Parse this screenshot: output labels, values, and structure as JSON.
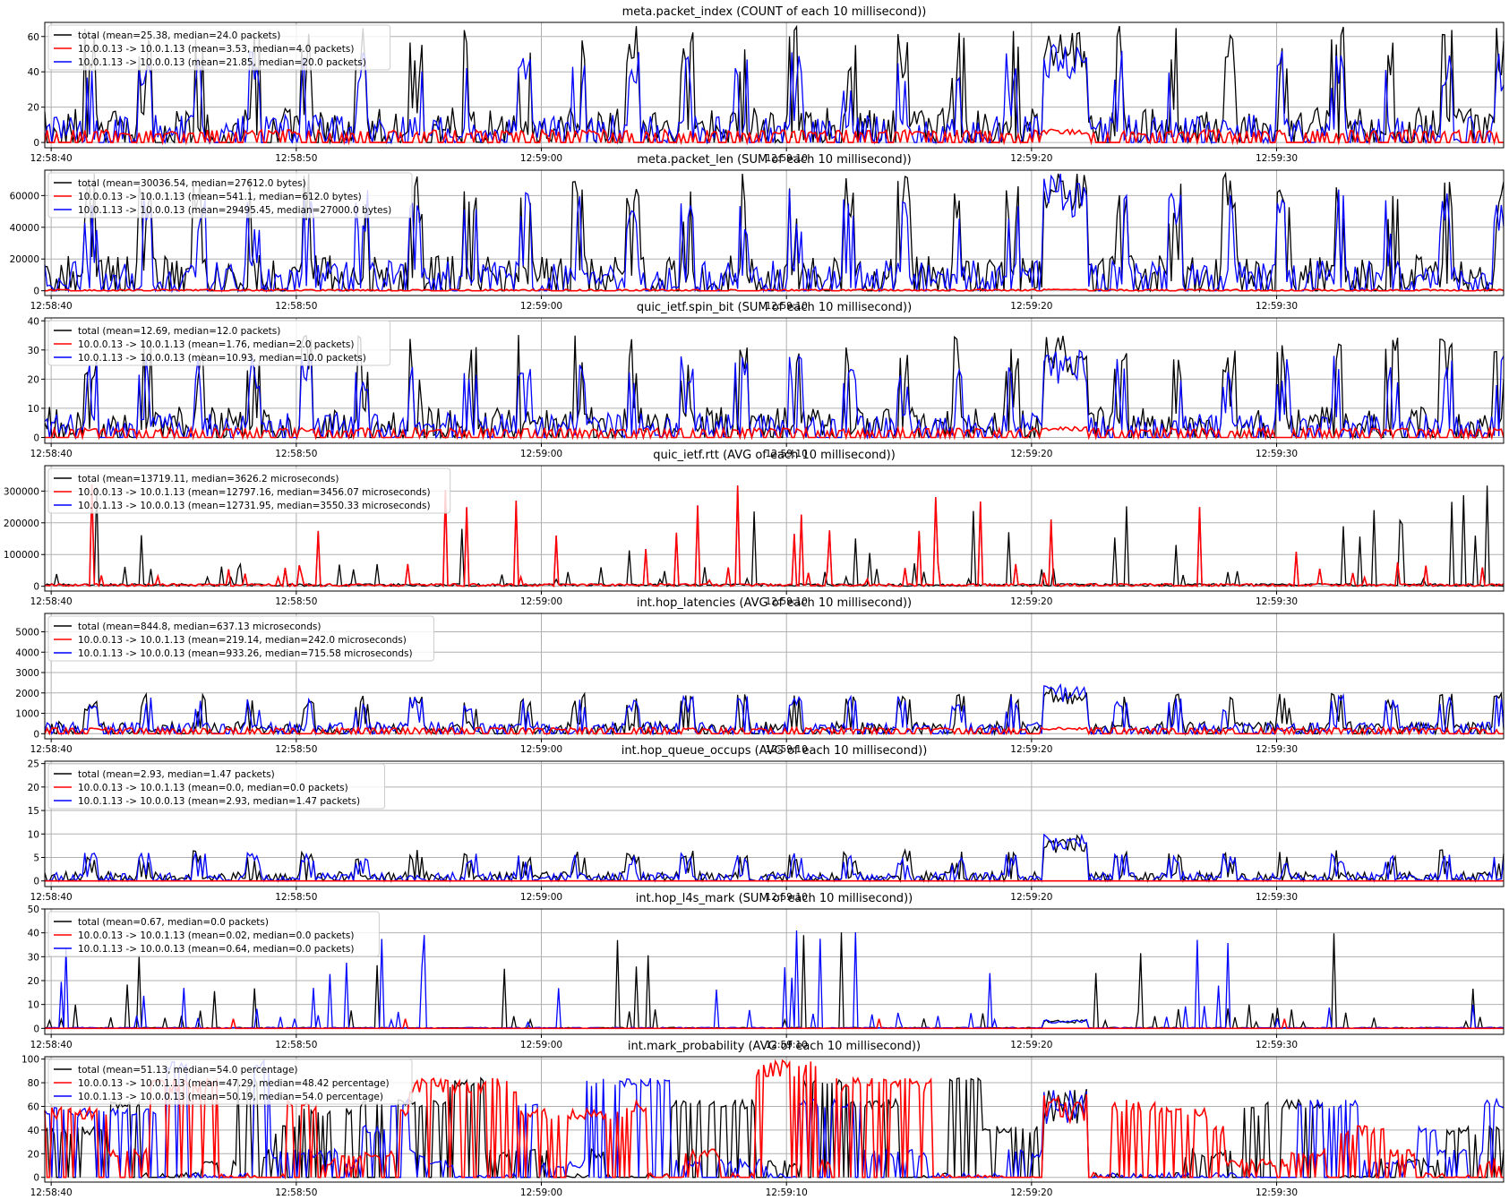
{
  "x_ticks": [
    "12:58:40",
    "12:58:50",
    "12:59:00",
    "12:59:10",
    "12:59:20",
    "12:59:30"
  ],
  "colors": {
    "total": "#000000",
    "a_to_b": "#ff0000",
    "b_to_a": "#0000ff",
    "grid": "#b0b0b0"
  },
  "chart_data": [
    {
      "type": "line",
      "title": "meta.packet_index (COUNT of each 10 millisecond))",
      "ylim": [
        -3,
        68
      ],
      "yticks": [
        0,
        20,
        40,
        60
      ],
      "grid": true,
      "legend_position": "top-left",
      "shape": {
        "total": 30,
        "a_to_b": 5.5,
        "b_to_a": 26,
        "burst_total": 52,
        "burst_b": 45,
        "burst_a": 6
      },
      "series": [
        {
          "name": "total (mean=25.38, median=24.0 packets)",
          "color": "#000000",
          "mean": 25.38,
          "median": 24.0
        },
        {
          "name": "10.0.0.13 -> 10.0.1.13 (mean=3.53, median=4.0 packets)",
          "color": "#ff0000",
          "mean": 3.53,
          "median": 4.0
        },
        {
          "name": "10.0.1.13 -> 10.0.0.13 (mean=21.85, median=20.0 packets)",
          "color": "#0000ff",
          "mean": 21.85,
          "median": 20.0
        }
      ]
    },
    {
      "type": "line",
      "title": "meta.packet_len (SUM of each 10 millisecond))",
      "ylim": [
        -3000,
        76000
      ],
      "yticks": [
        0,
        20000,
        40000,
        60000
      ],
      "grid": true,
      "legend_position": "top-left",
      "shape": {
        "total": 34000,
        "a_to_b": 700,
        "b_to_a": 32000,
        "burst_total": 64000,
        "burst_b": 60000,
        "burst_a": 800
      },
      "series": [
        {
          "name": "total (mean=30036.54, median=27612.0 bytes)",
          "color": "#000000",
          "mean": 30036.54,
          "median": 27612.0
        },
        {
          "name": "10.0.0.13 -> 10.0.1.13 (mean=541.1, median=612.0 bytes)",
          "color": "#ff0000",
          "mean": 541.1,
          "median": 612.0
        },
        {
          "name": "10.0.1.13 -> 10.0.0.13 (mean=29495.45, median=27000.0 bytes)",
          "color": "#0000ff",
          "mean": 29495.45,
          "median": 27000.0
        }
      ]
    },
    {
      "type": "line",
      "title": "quic_ietf.spin_bit (SUM of each 10 millisecond))",
      "ylim": [
        -2,
        41
      ],
      "yticks": [
        0,
        10,
        20,
        30,
        40
      ],
      "grid": true,
      "legend_position": "top-left",
      "shape": {
        "total": 16,
        "a_to_b": 2.5,
        "b_to_a": 14,
        "burst_total": 28,
        "burst_b": 24,
        "burst_a": 3
      },
      "series": [
        {
          "name": "total (mean=12.69, median=12.0 packets)",
          "color": "#000000",
          "mean": 12.69,
          "median": 12.0
        },
        {
          "name": "10.0.0.13 -> 10.0.1.13 (mean=1.76, median=2.0 packets)",
          "color": "#ff0000",
          "mean": 1.76,
          "median": 2.0
        },
        {
          "name": "10.0.1.13 -> 10.0.0.13 (mean=10.93, median=10.0 packets)",
          "color": "#0000ff",
          "mean": 10.93,
          "median": 10.0
        }
      ]
    },
    {
      "type": "line",
      "title": "quic_ietf.rtt (AVG of each 10 millisecond))",
      "ylim": [
        -15000,
        380000
      ],
      "yticks": [
        0,
        100000,
        200000,
        300000
      ],
      "grid": true,
      "legend_position": "top-left",
      "shape": {
        "total": 14000,
        "a_to_b": 14000,
        "b_to_a": 14000,
        "burst_total": 5000,
        "burst_b": 5000,
        "burst_a": 5000
      },
      "series": [
        {
          "name": "total (mean=13719.11, median=3626.2 microseconds)",
          "color": "#000000",
          "mean": 13719.11,
          "median": 3626.2
        },
        {
          "name": "10.0.0.13 -> 10.0.1.13 (mean=12797.16, median=3456.07 microseconds)",
          "color": "#ff0000",
          "mean": 12797.16,
          "median": 3456.07
        },
        {
          "name": "10.0.1.13 -> 10.0.0.13 (mean=12731.95, median=3550.33 microseconds)",
          "color": "#0000ff",
          "mean": 12731.95,
          "median": 3550.33
        }
      ]
    },
    {
      "type": "line",
      "title": "int.hop_latencies (AVG of each 10 millisecond))",
      "ylim": [
        -250,
        5900
      ],
      "yticks": [
        0,
        1000,
        2000,
        3000,
        4000,
        5000
      ],
      "grid": true,
      "legend_position": "top-left",
      "shape": {
        "total": 900,
        "a_to_b": 230,
        "b_to_a": 950,
        "burst_total": 1900,
        "burst_b": 2000,
        "burst_a": 250
      },
      "series": [
        {
          "name": "total (mean=844.8, median=637.13 microseconds)",
          "color": "#000000",
          "mean": 844.8,
          "median": 637.13
        },
        {
          "name": "10.0.0.13 -> 10.0.1.13 (mean=219.14, median=242.0 microseconds)",
          "color": "#ff0000",
          "mean": 219.14,
          "median": 242.0
        },
        {
          "name": "10.0.1.13 -> 10.0.0.13 (mean=933.26, median=715.58 microseconds)",
          "color": "#0000ff",
          "mean": 933.26,
          "median": 715.58
        }
      ]
    },
    {
      "type": "line",
      "title": "int.hop_queue_occups (AVG of each 10 millisecond))",
      "ylim": [
        -1.2,
        25.5
      ],
      "yticks": [
        0,
        5,
        10,
        15,
        20,
        25
      ],
      "grid": true,
      "legend_position": "top-left",
      "shape": {
        "total": 3,
        "a_to_b": 0,
        "b_to_a": 3,
        "burst_total": 8,
        "burst_b": 8,
        "burst_a": 0
      },
      "series": [
        {
          "name": "total (mean=2.93, median=1.47 packets)",
          "color": "#000000",
          "mean": 2.93,
          "median": 1.47
        },
        {
          "name": "10.0.0.13 -> 10.0.1.13 (mean=0.0, median=0.0 packets)",
          "color": "#ff0000",
          "mean": 0.0,
          "median": 0.0
        },
        {
          "name": "10.0.1.13 -> 10.0.0.13 (mean=2.93, median=1.47 packets)",
          "color": "#0000ff",
          "mean": 2.93,
          "median": 1.47
        }
      ]
    },
    {
      "type": "line",
      "title": "int.hop_l4s_mark (SUM of each 10 millisecond))",
      "ylim": [
        -2.5,
        50
      ],
      "yticks": [
        0,
        10,
        20,
        30,
        40,
        50
      ],
      "grid": true,
      "legend_position": "top-left",
      "shape": {
        "total": 0.7,
        "a_to_b": 0,
        "b_to_a": 0.7,
        "burst_total": 3,
        "burst_b": 3,
        "burst_a": 0
      },
      "series": [
        {
          "name": "total (mean=0.67, median=0.0 packets)",
          "color": "#000000",
          "mean": 0.67,
          "median": 0.0
        },
        {
          "name": "10.0.0.13 -> 10.0.1.13 (mean=0.02, median=0.0 packets)",
          "color": "#ff0000",
          "mean": 0.02,
          "median": 0.0
        },
        {
          "name": "10.0.1.13 -> 10.0.0.13 (mean=0.64, median=0.0 packets)",
          "color": "#0000ff",
          "mean": 0.64,
          "median": 0.0
        }
      ]
    },
    {
      "type": "line",
      "title": "int.mark_probability (AVG of each 10 millisecond))",
      "ylim": [
        -4,
        102
      ],
      "yticks": [
        0,
        20,
        40,
        60,
        80,
        100
      ],
      "grid": true,
      "legend_position": "top-left",
      "shape": {
        "total": 51,
        "a_to_b": 47,
        "b_to_a": 50,
        "burst_total": 60,
        "burst_b": 60,
        "burst_a": 58
      },
      "series": [
        {
          "name": "total (mean=51.13, median=54.0 percentage)",
          "color": "#000000",
          "mean": 51.13,
          "median": 54.0
        },
        {
          "name": "10.0.0.13 -> 10.0.1.13 (mean=47.29, median=48.42 percentage)",
          "color": "#ff0000",
          "mean": 47.29,
          "median": 48.42
        },
        {
          "name": "10.0.1.13 -> 10.0.0.13 (mean=50.19, median=54.0 percentage)",
          "color": "#0000ff",
          "mean": 50.19,
          "median": 54.0
        }
      ]
    }
  ]
}
